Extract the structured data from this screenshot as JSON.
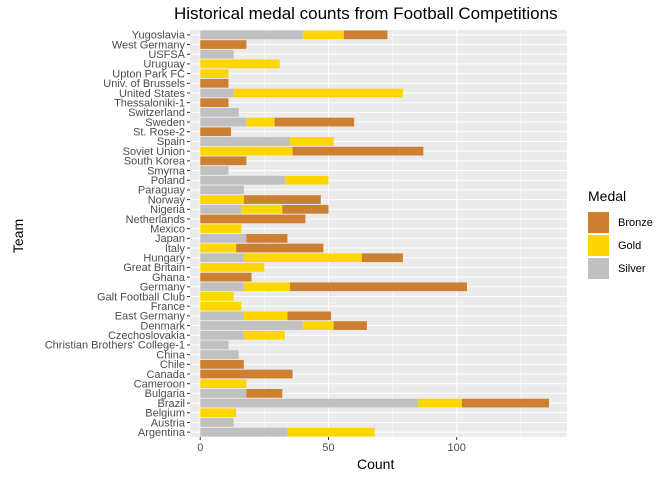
{
  "chart_data": {
    "type": "bar",
    "orientation": "horizontal",
    "stacked": true,
    "title": "Historical medal counts from Football Competitions",
    "xlabel": "Count",
    "ylabel": "Team",
    "xlim": [
      -4,
      143
    ],
    "xticks": [
      0,
      50,
      100
    ],
    "grid": true,
    "legend_position": "right",
    "legend_title": "Medal",
    "colors": {
      "Bronze": "#CD7F32",
      "Gold": "#FFD700",
      "Silver": "#C0C0C0",
      "panel": "#EBEBEB",
      "grid": "#FFFFFF"
    },
    "categories": [
      "Argentina",
      "Austria",
      "Belgium",
      "Brazil",
      "Bulgaria",
      "Cameroon",
      "Canada",
      "Chile",
      "China",
      "Christian Brothers' College-1",
      "Czechoslovakia",
      "Denmark",
      "East Germany",
      "France",
      "Galt Football Club",
      "Germany",
      "Ghana",
      "Great Britain",
      "Hungary",
      "Italy",
      "Japan",
      "Mexico",
      "Netherlands",
      "Nigeria",
      "Norway",
      "Paraguay",
      "Poland",
      "Smyrna",
      "South Korea",
      "Soviet Union",
      "Spain",
      "St. Rose-2",
      "Sweden",
      "Switzerland",
      "Thessaloniki-1",
      "United States",
      "Univ. of Brussels",
      "Upton Park FC",
      "Uruguay",
      "USFSA",
      "West Germany",
      "Yugoslavia"
    ],
    "series": [
      {
        "name": "Silver",
        "values": [
          34,
          13,
          0,
          85,
          18,
          0,
          0,
          0,
          15,
          11,
          17,
          40,
          17,
          0,
          0,
          17,
          0,
          0,
          17,
          0,
          18,
          0,
          0,
          16,
          0,
          17,
          33,
          11,
          0,
          0,
          35,
          0,
          18,
          15,
          0,
          13,
          0,
          0,
          0,
          13,
          0,
          40
        ]
      },
      {
        "name": "Gold",
        "values": [
          34,
          0,
          14,
          17,
          0,
          18,
          0,
          0,
          0,
          0,
          16,
          12,
          17,
          16,
          13,
          18,
          0,
          25,
          46,
          14,
          0,
          16,
          0,
          16,
          17,
          0,
          17,
          0,
          0,
          36,
          17,
          0,
          11,
          0,
          0,
          66,
          0,
          11,
          31,
          0,
          0,
          16
        ]
      },
      {
        "name": "Bronze",
        "values": [
          0,
          0,
          0,
          34,
          14,
          0,
          36,
          17,
          0,
          0,
          0,
          13,
          17,
          0,
          0,
          69,
          20,
          0,
          16,
          34,
          16,
          0,
          41,
          18,
          30,
          0,
          0,
          0,
          18,
          51,
          0,
          12,
          31,
          0,
          11,
          0,
          11,
          0,
          0,
          0,
          18,
          17
        ]
      }
    ]
  }
}
